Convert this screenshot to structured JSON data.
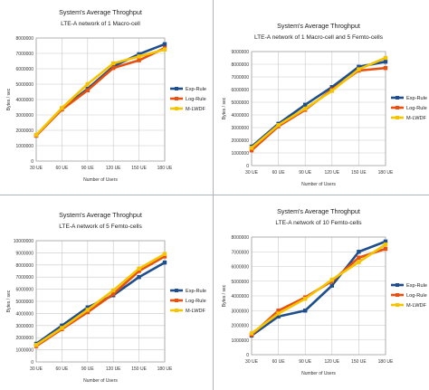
{
  "chart_data": [
    {
      "type": "line",
      "title": "System's Average Throghput",
      "subtitle": "LTE-A network of 1 Macro-cell",
      "xlabel": "Number of Users",
      "ylabel": "Bytes / sec",
      "categories": [
        "30 UE",
        "60 UE",
        "90 UE",
        "120 UE",
        "150 UE",
        "180 UE"
      ],
      "ylim": [
        0,
        8000000
      ],
      "yticks": [
        "0",
        "1000000",
        "2000000",
        "3000000",
        "4000000",
        "5000000",
        "6000000",
        "7000000",
        "8000000"
      ],
      "grid": true,
      "legend": "right",
      "series": [
        {
          "name": "Exp-Rule",
          "color": "#1f4e8c",
          "values": [
            1650000,
            3400000,
            4700000,
            6150000,
            6950000,
            7600000
          ]
        },
        {
          "name": "Log-Rule",
          "color": "#e8500f",
          "values": [
            1650000,
            3350000,
            4600000,
            6050000,
            6550000,
            7350000
          ]
        },
        {
          "name": "M-LWDF",
          "color": "#f5c400",
          "values": [
            1700000,
            3450000,
            5000000,
            6350000,
            6800000,
            7250000
          ]
        }
      ]
    },
    {
      "type": "line",
      "title": "System's Average Throghput",
      "subtitle": "LTE-A network of 1 Macro-cell and 5 Femto-cells",
      "xlabel": "Number of Users",
      "ylabel": "Bytes / sec",
      "categories": [
        "30 UE",
        "60 UE",
        "90 UE",
        "120 UE",
        "150 UE",
        "180 UE"
      ],
      "ylim": [
        0,
        9000000
      ],
      "yticks": [
        "0",
        "1000000",
        "2000000",
        "3000000",
        "4000000",
        "5000000",
        "6000000",
        "7000000",
        "8000000",
        "9000000"
      ],
      "grid": true,
      "legend": "right",
      "series": [
        {
          "name": "Exp-Rule",
          "color": "#1f4e8c",
          "values": [
            1500000,
            3300000,
            4800000,
            6200000,
            7800000,
            8200000
          ]
        },
        {
          "name": "Log-Rule",
          "color": "#e8500f",
          "values": [
            1200000,
            3100000,
            4400000,
            6000000,
            7500000,
            7700000
          ]
        },
        {
          "name": "M-LWDF",
          "color": "#f5c400",
          "values": [
            1400000,
            3200000,
            4500000,
            5900000,
            7600000,
            8500000
          ]
        }
      ]
    },
    {
      "type": "line",
      "title": "System's Average Throghput",
      "subtitle": "LTE-A network of 5 Femto-cells",
      "xlabel": "Number of Users",
      "ylabel": "Bytes / sec",
      "categories": [
        "30 UE",
        "60 UE",
        "90 UE",
        "120 UE",
        "150 UE",
        "180 UE"
      ],
      "ylim": [
        0,
        10000000
      ],
      "yticks": [
        "0",
        "1000000",
        "2000000",
        "3000000",
        "4000000",
        "5000000",
        "6000000",
        "7000000",
        "8000000",
        "9000000",
        "10000000"
      ],
      "grid": true,
      "legend": "right",
      "series": [
        {
          "name": "Exp-Rule",
          "color": "#1f4e8c",
          "values": [
            1500000,
            3000000,
            4500000,
            5500000,
            7000000,
            8200000
          ]
        },
        {
          "name": "Log-Rule",
          "color": "#e8500f",
          "values": [
            1300000,
            2700000,
            4100000,
            5600000,
            7500000,
            8700000
          ]
        },
        {
          "name": "M-LWDF",
          "color": "#f5c400",
          "values": [
            1400000,
            2800000,
            4300000,
            5900000,
            7700000,
            8900000
          ]
        }
      ]
    },
    {
      "type": "line",
      "title": "System's Average Throghput",
      "subtitle": "LTE-A network of 10 Femto-cells",
      "xlabel": "Number of Users",
      "ylabel": "Bytes / sec",
      "categories": [
        "30 UE",
        "60 UE",
        "90 UE",
        "120 UE",
        "150 UE",
        "180 UE"
      ],
      "ylim": [
        0,
        8000000
      ],
      "yticks": [
        "0",
        "1000000",
        "2000000",
        "3000000",
        "4000000",
        "5000000",
        "6000000",
        "7000000",
        "8000000"
      ],
      "grid": true,
      "legend": "right",
      "series": [
        {
          "name": "Exp-Rule",
          "color": "#1f4e8c",
          "values": [
            1300000,
            2600000,
            3000000,
            4700000,
            7000000,
            7700000
          ]
        },
        {
          "name": "Log-Rule",
          "color": "#e8500f",
          "values": [
            1350000,
            3000000,
            3900000,
            5000000,
            6600000,
            7200000
          ]
        },
        {
          "name": "M-LWDF",
          "color": "#f5c400",
          "values": [
            1450000,
            2800000,
            3800000,
            5100000,
            6300000,
            7500000
          ]
        }
      ]
    }
  ]
}
